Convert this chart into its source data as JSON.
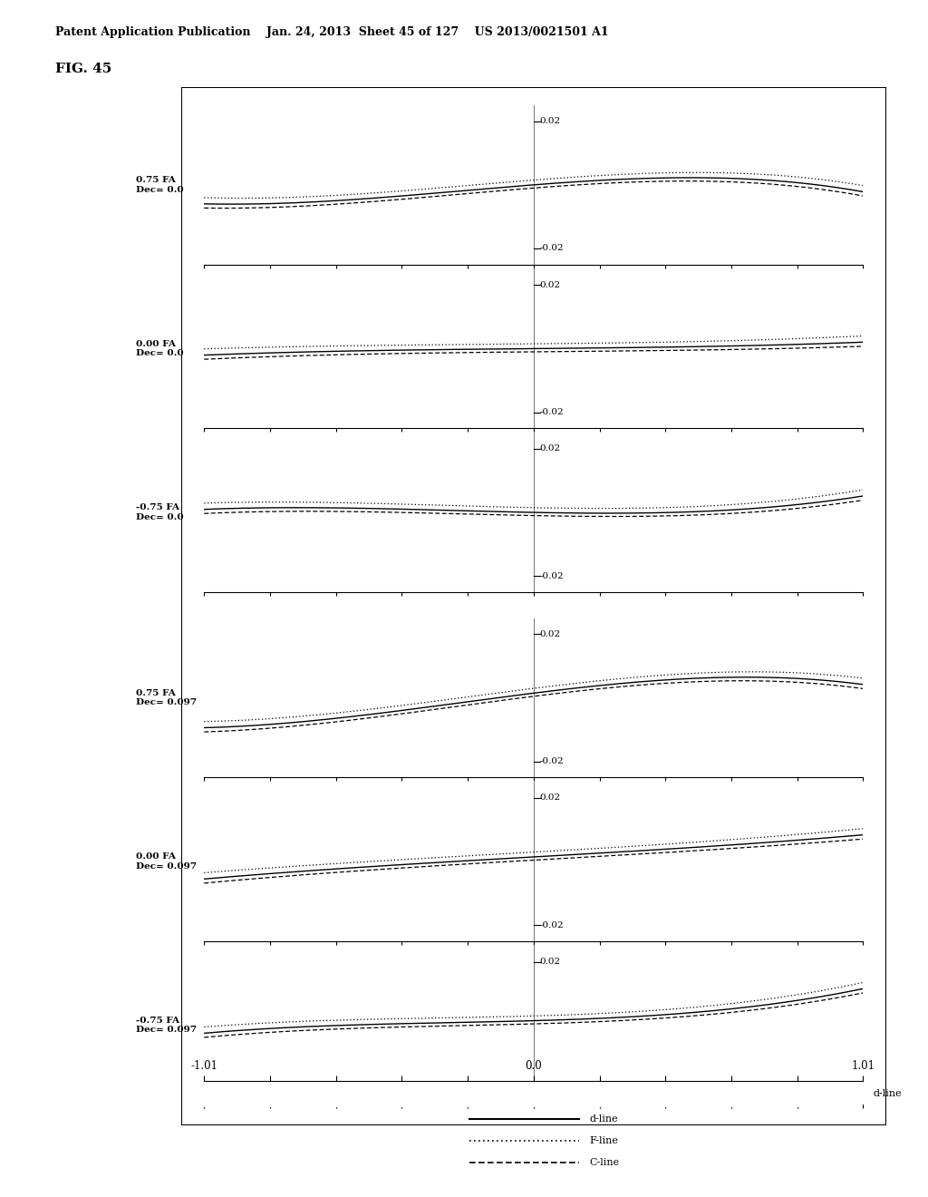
{
  "title_text": "FIG. 45",
  "header_text": "Patent Application Publication    Jan. 24, 2013  Sheet 45 of 127    US 2013/0021501 A1",
  "subplots": [
    {
      "label_fa": "0.75 FA",
      "label_dec": "Dec= 0.0"
    },
    {
      "label_fa": "0.00 FA",
      "label_dec": "Dec= 0.0"
    },
    {
      "label_fa": "-0.75 FA",
      "label_dec": "Dec= 0.0"
    },
    {
      "label_fa": "0.75 FA",
      "label_dec": "Dec= 0.097"
    },
    {
      "label_fa": "0.00 FA",
      "label_dec": "Dec= 0.097"
    },
    {
      "label_fa": "-0.75 FA",
      "label_dec": "Dec= 0.097"
    }
  ],
  "fa_values": [
    0.75,
    0.0,
    -0.75,
    0.75,
    0.0,
    -0.75
  ],
  "dec_values": [
    0.0,
    0.0,
    0.0,
    0.097,
    0.097,
    0.097
  ],
  "xlim": [
    -1.01,
    1.01
  ],
  "ylim": [
    -0.025,
    0.025
  ],
  "legend_labels": [
    "d-line",
    "F-line",
    "C-line"
  ],
  "bg_color": "#ffffff"
}
